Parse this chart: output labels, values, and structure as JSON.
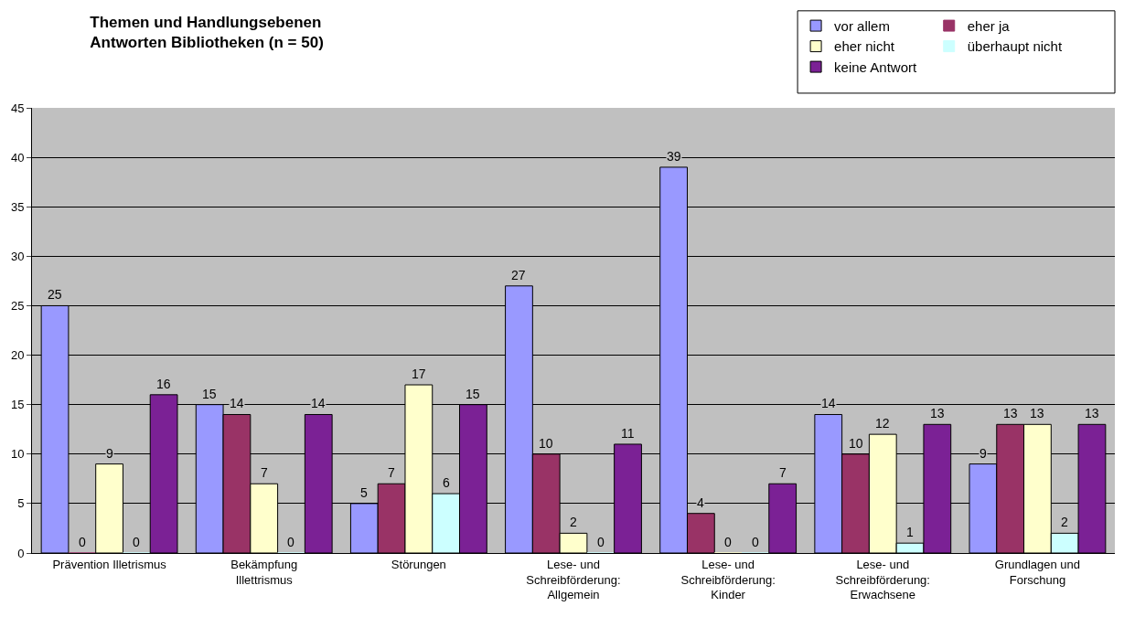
{
  "chart_data": {
    "type": "bar",
    "title": "Themen und Handlungsebenen\nAntworten Bibliotheken (n = 50)",
    "categories": [
      "Prävention Illetrismus",
      "Bekämpfung Illettrismus",
      "Störungen",
      "Lese- und Schreibförderung: Allgemein",
      "Lese- und Schreibförderung: Kinder",
      "Lese- und Schreibförderung: Erwachsene",
      "Grundlagen und Forschung"
    ],
    "series": [
      {
        "name": "vor allem",
        "color": "#9999ff",
        "values": [
          25,
          15,
          5,
          27,
          39,
          14,
          9
        ]
      },
      {
        "name": "eher ja",
        "color": "#993366",
        "values": [
          0,
          14,
          7,
          10,
          4,
          10,
          13
        ]
      },
      {
        "name": "eher nicht",
        "color": "#ffffcc",
        "values": [
          9,
          7,
          17,
          2,
          0,
          12,
          13
        ]
      },
      {
        "name": "überhaupt nicht",
        "color": "#ccffff",
        "values": [
          0,
          0,
          6,
          0,
          0,
          1,
          2
        ]
      },
      {
        "name": "keine Antwort",
        "color": "#7b2195",
        "values": [
          16,
          14,
          15,
          11,
          7,
          13,
          13
        ]
      }
    ],
    "ylim": [
      0,
      45
    ],
    "yticks": [
      0,
      5,
      10,
      15,
      20,
      25,
      30,
      35,
      40,
      45
    ],
    "grid": "y",
    "legend": "top right",
    "data_labels": true
  }
}
